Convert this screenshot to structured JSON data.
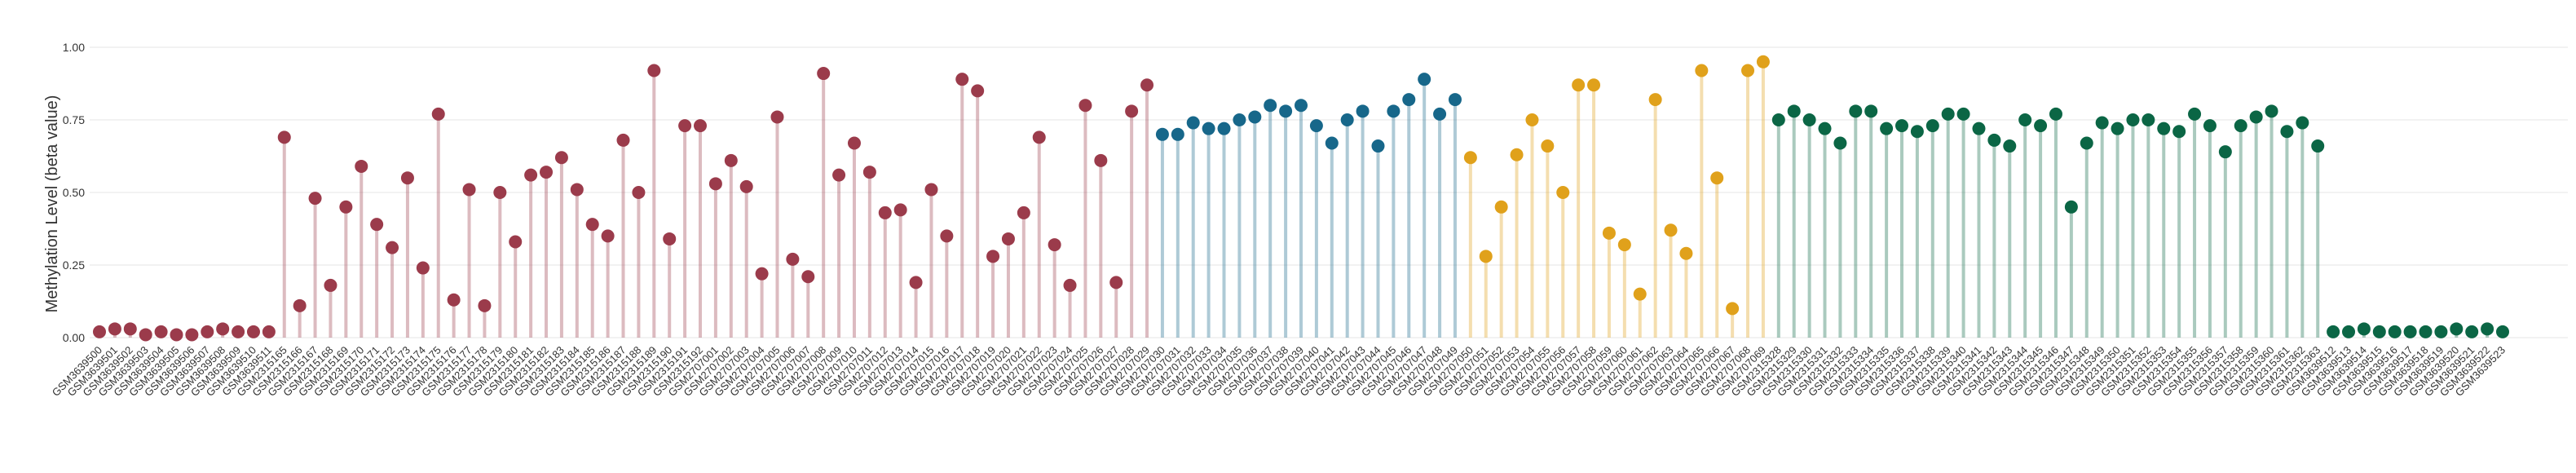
{
  "chart_data": {
    "type": "lollipop",
    "y_label": "Methylation Level (beta value)",
    "ylim": [
      0,
      1.04
    ],
    "yticks": [
      {
        "value": 0,
        "label": "0.00"
      },
      {
        "value": 0.25,
        "label": "0.25"
      },
      {
        "value": 0.5,
        "label": "0.50"
      },
      {
        "value": 0.75,
        "label": "0.75"
      },
      {
        "value": 1,
        "label": "1.00"
      }
    ],
    "grid": true,
    "categories": [
      "GSM3639500",
      "GSM3639501",
      "GSM3639502",
      "GSM3639503",
      "GSM3639504",
      "GSM3639505",
      "GSM3639506",
      "GSM3639507",
      "GSM3639508",
      "GSM3639509",
      "GSM3639510",
      "GSM3639511",
      "GSM2315165",
      "GSM2315166",
      "GSM2315167",
      "GSM2315168",
      "GSM2315169",
      "GSM2315170",
      "GSM2315171",
      "GSM2315172",
      "GSM2315173",
      "GSM2315174",
      "GSM2315175",
      "GSM2315176",
      "GSM2315177",
      "GSM2315178",
      "GSM2315179",
      "GSM2315180",
      "GSM2315181",
      "GSM2315182",
      "GSM2315183",
      "GSM2315184",
      "GSM2315185",
      "GSM2315186",
      "GSM2315187",
      "GSM2315188",
      "GSM2315189",
      "GSM2315190",
      "GSM2315191",
      "GSM2315192",
      "GSM2707001",
      "GSM2707002",
      "GSM2707003",
      "GSM2707004",
      "GSM2707005",
      "GSM2707006",
      "GSM2707007",
      "GSM2707008",
      "GSM2707009",
      "GSM2707010",
      "GSM2707011",
      "GSM2707012",
      "GSM2707013",
      "GSM2707014",
      "GSM2707015",
      "GSM2707016",
      "GSM2707017",
      "GSM2707018",
      "GSM2707019",
      "GSM2707020",
      "GSM2707021",
      "GSM2707022",
      "GSM2707023",
      "GSM2707024",
      "GSM2707025",
      "GSM2707026",
      "GSM2707027",
      "GSM2707028",
      "GSM2707029",
      "GSM2707030",
      "GSM2707031",
      "GSM2707032",
      "GSM2707033",
      "GSM2707034",
      "GSM2707035",
      "GSM2707036",
      "GSM2707037",
      "GSM2707038",
      "GSM2707039",
      "GSM2707040",
      "GSM2707041",
      "GSM2707042",
      "GSM2707043",
      "GSM2707044",
      "GSM2707045",
      "GSM2707046",
      "GSM2707047",
      "GSM2707048",
      "GSM2707049",
      "GSM2707050",
      "GSM2707051",
      "GSM2707052",
      "GSM2707053",
      "GSM2707054",
      "GSM2707055",
      "GSM2707056",
      "GSM2707057",
      "GSM2707058",
      "GSM2707059",
      "GSM2707060",
      "GSM2707061",
      "GSM2707062",
      "GSM2707063",
      "GSM2707064",
      "GSM2707065",
      "GSM2707066",
      "GSM2707067",
      "GSM2707068",
      "GSM2707069",
      "GSM2315328",
      "GSM2315329",
      "GSM2315330",
      "GSM2315331",
      "GSM2315332",
      "GSM2315333",
      "GSM2315334",
      "GSM2315335",
      "GSM2315336",
      "GSM2315337",
      "GSM2315338",
      "GSM2315339",
      "GSM2315340",
      "GSM2315341",
      "GSM2315342",
      "GSM2315343",
      "GSM2315344",
      "GSM2315345",
      "GSM2315346",
      "GSM2315347",
      "GSM2315348",
      "GSM2315349",
      "GSM2315350",
      "GSM2315351",
      "GSM2315352",
      "GSM2315353",
      "GSM2315354",
      "GSM2315355",
      "GSM2315356",
      "GSM2315357",
      "GSM2315358",
      "GSM2315359",
      "GSM2315360",
      "GSM2315361",
      "GSM2315362",
      "GSM2315363",
      "GSM3639512",
      "GSM3639513",
      "GSM3639514",
      "GSM3639515",
      "GSM3639516",
      "GSM3639517",
      "GSM3639518",
      "GSM3639519",
      "GSM3639520",
      "GSM3639521",
      "GSM3639522",
      "GSM3639523"
    ],
    "values": [
      0.02,
      0.03,
      0.03,
      0.01,
      0.02,
      0.01,
      0.01,
      0.02,
      0.03,
      0.02,
      0.02,
      0.02,
      0.69,
      0.11,
      0.48,
      0.18,
      0.45,
      0.59,
      0.39,
      0.31,
      0.55,
      0.24,
      0.77,
      0.13,
      0.51,
      0.11,
      0.5,
      0.33,
      0.56,
      0.57,
      0.62,
      0.51,
      0.39,
      0.35,
      0.68,
      0.5,
      0.92,
      0.34,
      0.73,
      0.73,
      0.53,
      0.61,
      0.52,
      0.22,
      0.76,
      0.27,
      0.21,
      0.91,
      0.56,
      0.67,
      0.57,
      0.43,
      0.44,
      0.19,
      0.51,
      0.35,
      0.89,
      0.85,
      0.28,
      0.34,
      0.43,
      0.69,
      0.32,
      0.18,
      0.8,
      0.61,
      0.19,
      0.78,
      0.87,
      0.7,
      0.7,
      0.74,
      0.72,
      0.72,
      0.75,
      0.76,
      0.8,
      0.78,
      0.8,
      0.73,
      0.67,
      0.75,
      0.78,
      0.66,
      0.78,
      0.82,
      0.89,
      0.77,
      0.82,
      0.62,
      0.28,
      0.45,
      0.63,
      0.75,
      0.66,
      0.5,
      0.87,
      0.87,
      0.36,
      0.32,
      0.15,
      0.82,
      0.37,
      0.29,
      0.92,
      0.55,
      0.1,
      0.92,
      0.95,
      0.75,
      0.78,
      0.75,
      0.72,
      0.67,
      0.78,
      0.78,
      0.72,
      0.73,
      0.71,
      0.73,
      0.77,
      0.77,
      0.72,
      0.68,
      0.66,
      0.75,
      0.73,
      0.77,
      0.45,
      0.67,
      0.74,
      0.72,
      0.75,
      0.75,
      0.72,
      0.71,
      0.77,
      0.73,
      0.64,
      0.73,
      0.76,
      0.78,
      0.71,
      0.74,
      0.66,
      0.02,
      0.02,
      0.03,
      0.02,
      0.02,
      0.02,
      0.02,
      0.02,
      0.03,
      0.02,
      0.03,
      0.02
    ],
    "colors": [
      "#9b3b4b",
      "#9b3b4b",
      "#9b3b4b",
      "#9b3b4b",
      "#9b3b4b",
      "#9b3b4b",
      "#9b3b4b",
      "#9b3b4b",
      "#9b3b4b",
      "#9b3b4b",
      "#9b3b4b",
      "#9b3b4b",
      "#9b3b4b",
      "#9b3b4b",
      "#9b3b4b",
      "#9b3b4b",
      "#9b3b4b",
      "#9b3b4b",
      "#9b3b4b",
      "#9b3b4b",
      "#9b3b4b",
      "#9b3b4b",
      "#9b3b4b",
      "#9b3b4b",
      "#9b3b4b",
      "#9b3b4b",
      "#9b3b4b",
      "#9b3b4b",
      "#9b3b4b",
      "#9b3b4b",
      "#9b3b4b",
      "#9b3b4b",
      "#9b3b4b",
      "#9b3b4b",
      "#9b3b4b",
      "#9b3b4b",
      "#9b3b4b",
      "#9b3b4b",
      "#9b3b4b",
      "#9b3b4b",
      "#9b3b4b",
      "#9b3b4b",
      "#9b3b4b",
      "#9b3b4b",
      "#9b3b4b",
      "#9b3b4b",
      "#9b3b4b",
      "#9b3b4b",
      "#9b3b4b",
      "#9b3b4b",
      "#9b3b4b",
      "#9b3b4b",
      "#9b3b4b",
      "#9b3b4b",
      "#9b3b4b",
      "#9b3b4b",
      "#9b3b4b",
      "#9b3b4b",
      "#9b3b4b",
      "#9b3b4b",
      "#9b3b4b",
      "#9b3b4b",
      "#9b3b4b",
      "#9b3b4b",
      "#9b3b4b",
      "#9b3b4b",
      "#9b3b4b",
      "#9b3b4b",
      "#9b3b4b",
      "#17678a",
      "#17678a",
      "#17678a",
      "#17678a",
      "#17678a",
      "#17678a",
      "#17678a",
      "#17678a",
      "#17678a",
      "#17678a",
      "#17678a",
      "#17678a",
      "#17678a",
      "#17678a",
      "#17678a",
      "#17678a",
      "#17678a",
      "#17678a",
      "#17678a",
      "#17678a",
      "#e0a11b",
      "#e0a11b",
      "#e0a11b",
      "#e0a11b",
      "#e0a11b",
      "#e0a11b",
      "#e0a11b",
      "#e0a11b",
      "#e0a11b",
      "#e0a11b",
      "#e0a11b",
      "#e0a11b",
      "#e0a11b",
      "#e0a11b",
      "#e0a11b",
      "#e0a11b",
      "#e0a11b",
      "#e0a11b",
      "#e0a11b",
      "#e0a11b",
      "#0b6645",
      "#0b6645",
      "#0b6645",
      "#0b6645",
      "#0b6645",
      "#0b6645",
      "#0b6645",
      "#0b6645",
      "#0b6645",
      "#0b6645",
      "#0b6645",
      "#0b6645",
      "#0b6645",
      "#0b6645",
      "#0b6645",
      "#0b6645",
      "#0b6645",
      "#0b6645",
      "#0b6645",
      "#0b6645",
      "#0b6645",
      "#0b6645",
      "#0b6645",
      "#0b6645",
      "#0b6645",
      "#0b6645",
      "#0b6645",
      "#0b6645",
      "#0b6645",
      "#0b6645",
      "#0b6645",
      "#0b6645",
      "#0b6645",
      "#0b6645",
      "#0b6645",
      "#0b6645",
      "#0b6645",
      "#0b6645",
      "#0b6645",
      "#0b6645",
      "#0b6645",
      "#0b6645",
      "#0b6645",
      "#0b6645",
      "#0b6645",
      "#0b6645",
      "#0b6645",
      "#0b6645"
    ]
  }
}
